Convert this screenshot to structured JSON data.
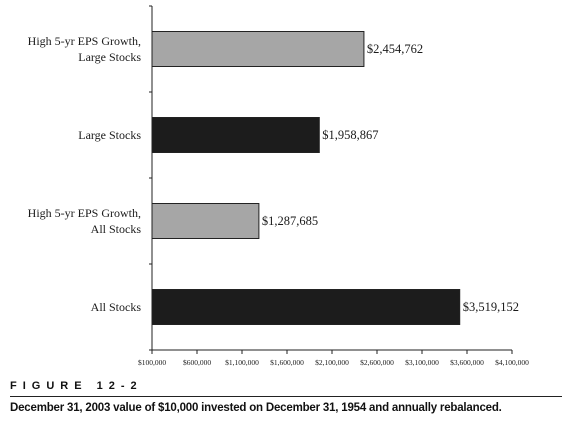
{
  "chart_data": {
    "type": "bar",
    "orientation": "horizontal",
    "categories": [
      [
        "High 5-yr EPS Growth,",
        "Large Stocks"
      ],
      [
        "Large Stocks"
      ],
      [
        "High 5-yr EPS Growth,",
        "All Stocks"
      ],
      [
        "All Stocks"
      ]
    ],
    "values": [
      2454762,
      1958867,
      1287685,
      3519152
    ],
    "value_labels": [
      "$2,454,762",
      "$1,958,867",
      "$1,287,685",
      "$3,519,152"
    ],
    "bar_colors": [
      "#a6a6a6",
      "#1c1c1c",
      "#a6a6a6",
      "#1c1c1c"
    ],
    "xlim": [
      100000,
      4100000
    ],
    "xticks": [
      100000,
      600000,
      1100000,
      1600000,
      2100000,
      2600000,
      3100000,
      3600000,
      4100000
    ],
    "xtick_labels": [
      "$100,000",
      "$600,000",
      "$1,100,000",
      "$1,600,000",
      "$2,100,000",
      "$2,600,000",
      "$3,100,000",
      "$3,600,000",
      "$4,100,000"
    ],
    "grid": false,
    "legend": "none"
  },
  "figure": {
    "label": "FIGURE 12-2",
    "caption": "December 31, 2003 value of $10,000 invested on December 31, 1954 and annually rebalanced."
  }
}
